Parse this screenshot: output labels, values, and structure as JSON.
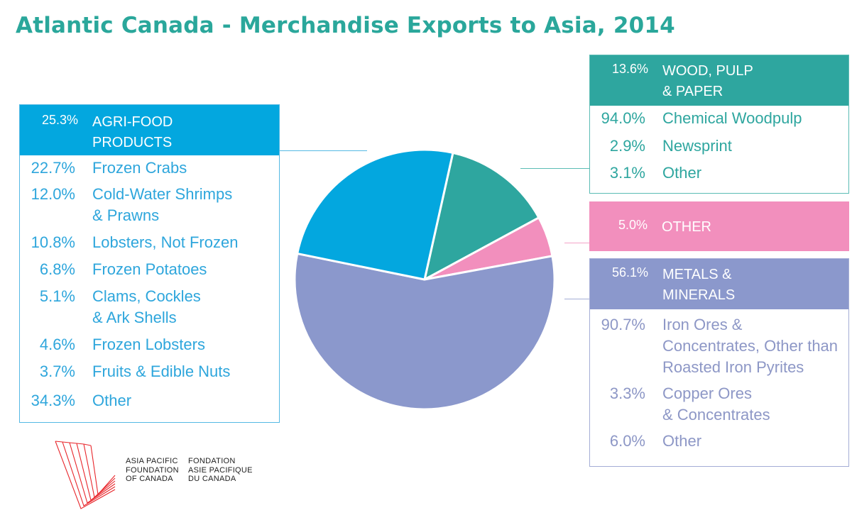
{
  "title": "Atlantic Canada - Merchandise Exports to Asia, 2014",
  "chart_data": {
    "type": "pie",
    "title": "Atlantic Canada - Merchandise Exports to Asia, 2014",
    "slices": [
      {
        "name": "WOOD, PULP & PAPER",
        "value": 13.6,
        "color": "#2ea69f"
      },
      {
        "name": "OTHER",
        "value": 5.0,
        "color": "#f28fbd"
      },
      {
        "name": "METALS & MINERALS",
        "value": 56.1,
        "color": "#8b98cc"
      },
      {
        "name": "AGRI-FOOD PRODUCTS",
        "value": 25.3,
        "color": "#03a7df"
      }
    ]
  },
  "agri": {
    "pct": "25.3%",
    "label_1": "AGRI-FOOD",
    "label_2": "PRODUCTS",
    "items": [
      {
        "pct": "22.7%",
        "label_1": "Frozen Crabs",
        "label_2": ""
      },
      {
        "pct": "12.0%",
        "label_1": "Cold-Water Shrimps",
        "label_2": "& Prawns"
      },
      {
        "pct": "10.8%",
        "label_1": "Lobsters, Not Frozen",
        "label_2": ""
      },
      {
        "pct": "6.8%",
        "label_1": "Frozen Potatoes",
        "label_2": ""
      },
      {
        "pct": "5.1%",
        "label_1": "Clams, Cockles",
        "label_2": "& Ark Shells"
      },
      {
        "pct": "4.6%",
        "label_1": "Frozen Lobsters",
        "label_2": ""
      },
      {
        "pct": "3.7%",
        "label_1": "Fruits & Edible Nuts",
        "label_2": ""
      },
      {
        "pct": "34.3%",
        "label_1": "Other",
        "label_2": ""
      }
    ]
  },
  "wood": {
    "pct": "13.6%",
    "label_1": "WOOD, PULP",
    "label_2": "& PAPER",
    "items": [
      {
        "pct": "94.0%",
        "label_1": "Chemical Woodpulp"
      },
      {
        "pct": "2.9%",
        "label_1": "Newsprint"
      },
      {
        "pct": "3.1%",
        "label_1": "Other"
      }
    ]
  },
  "other": {
    "pct": "5.0%",
    "label_1": "OTHER"
  },
  "metals": {
    "pct": "56.1%",
    "label_1": "METALS &",
    "label_2": "MINERALS",
    "items": [
      {
        "pct": "90.7%",
        "label_1": "Iron Ores &",
        "label_2": "Concentrates, Other than",
        "label_3": "Roasted Iron Pyrites"
      },
      {
        "pct": "3.3%",
        "label_1": "Copper Ores",
        "label_2": "& Concentrates",
        "label_3": ""
      },
      {
        "pct": "6.0%",
        "label_1": "Other",
        "label_2": "",
        "label_3": ""
      }
    ]
  },
  "logo": {
    "en": "ASIA PACIFIC\nFOUNDATION\nOF CANADA",
    "fr": "FONDATION\nASIE PACIFIQUE\nDU CANADA"
  }
}
